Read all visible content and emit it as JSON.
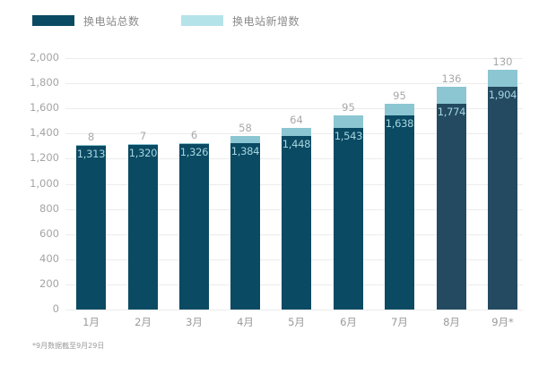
{
  "legend": [
    {
      "label": "换电站总数",
      "color": "#0b4a63"
    },
    {
      "label": "换电站新增数",
      "color": "#b5e3ea"
    }
  ],
  "colors": {
    "base": "#0b4a63",
    "base_late": "#234a61",
    "new": "#8cc6d2",
    "legend_new": "#b5e3ea",
    "gridline": "#ececec"
  },
  "y_ticks": [
    "2,000",
    "1,800",
    "1,600",
    "1,400",
    "1,200",
    "1,000",
    "800",
    "600",
    "400",
    "200",
    "0"
  ],
  "bars": [
    {
      "month": "1月",
      "total": 1313,
      "total_label": "1,313",
      "new": 8,
      "new_label": "8"
    },
    {
      "month": "2月",
      "total": 1320,
      "total_label": "1,320",
      "new": 7,
      "new_label": "7"
    },
    {
      "month": "3月",
      "total": 1326,
      "total_label": "1,326",
      "new": 6,
      "new_label": "6"
    },
    {
      "month": "4月",
      "total": 1384,
      "total_label": "1,384",
      "new": 58,
      "new_label": "58"
    },
    {
      "month": "5月",
      "total": 1448,
      "total_label": "1,448",
      "new": 64,
      "new_label": "64"
    },
    {
      "month": "6月",
      "total": 1543,
      "total_label": "1,543",
      "new": 95,
      "new_label": "95"
    },
    {
      "month": "7月",
      "total": 1638,
      "total_label": "1,638",
      "new": 95,
      "new_label": "95"
    },
    {
      "month": "8月",
      "total": 1774,
      "total_label": "1,774",
      "new": 136,
      "new_label": "136"
    },
    {
      "month": "9月*",
      "total": 1904,
      "total_label": "1,904",
      "new": 130,
      "new_label": "130"
    }
  ],
  "footnote": "*9月数据截至9月29日",
  "chart_data": {
    "type": "bar",
    "stacked": true,
    "title": "",
    "xlabel": "",
    "ylabel": "",
    "ylim": [
      0,
      2000
    ],
    "grid": true,
    "legend_position": "top-left",
    "categories": [
      "1月",
      "2月",
      "3月",
      "4月",
      "5月",
      "6月",
      "7月",
      "8月",
      "9月*"
    ],
    "series": [
      {
        "name": "换电站总数",
        "values": [
          1313,
          1320,
          1326,
          1384,
          1448,
          1543,
          1638,
          1774,
          1904
        ]
      },
      {
        "name": "换电站新增数",
        "values": [
          8,
          7,
          6,
          58,
          64,
          95,
          95,
          136,
          130
        ]
      }
    ],
    "annotations": [
      "*9月数据截至9月29日"
    ]
  }
}
